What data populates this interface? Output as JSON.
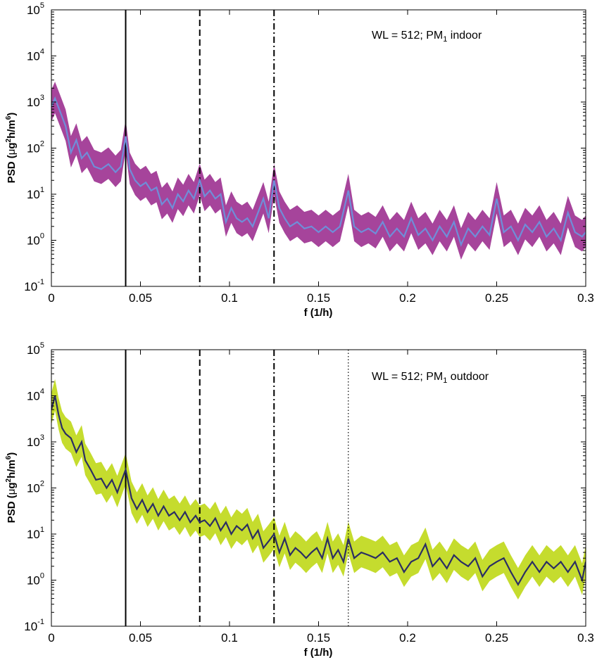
{
  "chart_data": [
    {
      "type": "area",
      "annotation": {
        "prefix": "WL = 512; PM",
        "sub": "1",
        "suffix": " indoor"
      },
      "xlabel": "f (1/h)",
      "ylabel_parts": {
        "a": "PSD (",
        "mu": "μ",
        "g": "g",
        "sup1": "2",
        "b": "h/m",
        "sup2": "6",
        "c": ")"
      },
      "xlim": [
        0,
        0.3
      ],
      "ylim": [
        0.1,
        100000
      ],
      "yscale": "log",
      "x_ticks": [
        "0",
        "0.05",
        "0.1",
        "0.15",
        "0.2",
        "0.25",
        "0.3"
      ],
      "y_ticks": [
        {
          "base": "10",
          "exp": "-1"
        },
        {
          "base": "10",
          "exp": "0"
        },
        {
          "base": "10",
          "exp": "1"
        },
        {
          "base": "10",
          "exp": "2"
        },
        {
          "base": "10",
          "exp": "3"
        },
        {
          "base": "10",
          "exp": "4"
        },
        {
          "base": "10",
          "exp": "5"
        }
      ],
      "band_color": "#a6449b",
      "line_color": "#6f8ed8",
      "vlines": [
        {
          "x": 0.0417,
          "style": "solid"
        },
        {
          "x": 0.0833,
          "style": "dashed"
        },
        {
          "x": 0.125,
          "style": "dashdot"
        }
      ],
      "series": [
        {
          "role": "median",
          "x": [
            0,
            0.002,
            0.005,
            0.008,
            0.011,
            0.014,
            0.017,
            0.02,
            0.024,
            0.028,
            0.032,
            0.036,
            0.039,
            0.0417,
            0.044,
            0.047,
            0.05,
            0.053,
            0.056,
            0.059,
            0.062,
            0.065,
            0.068,
            0.071,
            0.074,
            0.077,
            0.08,
            0.0833,
            0.086,
            0.089,
            0.092,
            0.095,
            0.098,
            0.101,
            0.104,
            0.107,
            0.11,
            0.113,
            0.116,
            0.119,
            0.122,
            0.125,
            0.128,
            0.131,
            0.134,
            0.138,
            0.142,
            0.146,
            0.15,
            0.154,
            0.158,
            0.162,
            0.1667,
            0.17,
            0.174,
            0.178,
            0.182,
            0.186,
            0.19,
            0.194,
            0.198,
            0.202,
            0.206,
            0.21,
            0.214,
            0.218,
            0.222,
            0.226,
            0.23,
            0.234,
            0.238,
            0.242,
            0.246,
            0.25,
            0.254,
            0.258,
            0.262,
            0.266,
            0.27,
            0.274,
            0.278,
            0.282,
            0.286,
            0.29,
            0.294,
            0.298,
            0.3
          ],
          "y": [
            800,
            1200,
            600,
            300,
            80,
            150,
            60,
            80,
            40,
            35,
            45,
            30,
            40,
            180,
            35,
            20,
            15,
            18,
            12,
            14,
            6,
            8,
            5,
            10,
            7,
            12,
            8,
            20,
            9,
            12,
            8,
            10,
            2.5,
            5,
            3,
            2.5,
            3,
            2,
            4,
            8,
            3,
            20,
            5,
            3,
            2,
            2.5,
            1.8,
            2,
            1.5,
            2,
            1.5,
            2,
            12,
            2,
            1.5,
            1.8,
            1.4,
            2.5,
            1.2,
            1.8,
            1.2,
            3,
            1.3,
            1.8,
            1.0,
            2,
            1.2,
            2.5,
            0.8,
            1.8,
            1.2,
            2,
            1.3,
            8,
            1.5,
            2,
            1.0,
            2.2,
            1.5,
            2.5,
            1.2,
            1.8,
            1.0,
            4,
            1.5,
            1.2,
            1.5
          ]
        }
      ]
    },
    {
      "type": "area",
      "annotation": {
        "prefix": "WL = 512; PM",
        "sub": "1",
        "suffix": " outdoor"
      },
      "xlabel": "f (1/h)",
      "ylabel_parts": {
        "a": "PSD (",
        "mu": "μ",
        "g": "g",
        "sup1": "2",
        "b": "h/m",
        "sup2": "6",
        "c": ")"
      },
      "xlim": [
        0,
        0.3
      ],
      "ylim": [
        0.1,
        100000
      ],
      "yscale": "log",
      "x_ticks": [
        "0",
        "0.05",
        "0.1",
        "0.15",
        "0.2",
        "0.25",
        "0.3"
      ],
      "y_ticks": [
        {
          "base": "10",
          "exp": "-1"
        },
        {
          "base": "10",
          "exp": "0"
        },
        {
          "base": "10",
          "exp": "1"
        },
        {
          "base": "10",
          "exp": "2"
        },
        {
          "base": "10",
          "exp": "3"
        },
        {
          "base": "10",
          "exp": "4"
        },
        {
          "base": "10",
          "exp": "5"
        }
      ],
      "band_color": "#c5dc2e",
      "line_color": "#2b2e63",
      "vlines": [
        {
          "x": 0.0417,
          "style": "solid"
        },
        {
          "x": 0.0833,
          "style": "dashed"
        },
        {
          "x": 0.125,
          "style": "dashdot"
        },
        {
          "x": 0.1667,
          "style": "dotted"
        }
      ],
      "series": [
        {
          "role": "median",
          "x": [
            0,
            0.002,
            0.004,
            0.006,
            0.008,
            0.011,
            0.014,
            0.017,
            0.019,
            0.022,
            0.025,
            0.028,
            0.031,
            0.034,
            0.037,
            0.0417,
            0.045,
            0.048,
            0.051,
            0.054,
            0.057,
            0.06,
            0.063,
            0.066,
            0.069,
            0.072,
            0.075,
            0.078,
            0.081,
            0.0833,
            0.086,
            0.089,
            0.092,
            0.095,
            0.098,
            0.101,
            0.104,
            0.107,
            0.11,
            0.113,
            0.116,
            0.119,
            0.122,
            0.125,
            0.128,
            0.131,
            0.134,
            0.137,
            0.14,
            0.143,
            0.146,
            0.149,
            0.152,
            0.155,
            0.158,
            0.161,
            0.164,
            0.1667,
            0.17,
            0.174,
            0.178,
            0.182,
            0.186,
            0.19,
            0.194,
            0.198,
            0.202,
            0.206,
            0.21,
            0.214,
            0.218,
            0.222,
            0.226,
            0.23,
            0.234,
            0.238,
            0.242,
            0.246,
            0.25,
            0.254,
            0.258,
            0.262,
            0.266,
            0.27,
            0.274,
            0.278,
            0.282,
            0.286,
            0.29,
            0.294,
            0.298,
            0.3
          ],
          "y": [
            5000,
            10000,
            4000,
            2000,
            1500,
            1200,
            600,
            1000,
            400,
            250,
            150,
            160,
            100,
            150,
            80,
            250,
            60,
            35,
            55,
            30,
            45,
            25,
            40,
            25,
            30,
            20,
            30,
            18,
            25,
            18,
            20,
            15,
            22,
            12,
            18,
            10,
            15,
            12,
            16,
            8,
            12,
            5,
            7,
            10,
            4,
            8,
            3.5,
            5,
            4,
            3,
            4,
            5,
            3,
            8,
            3,
            4.5,
            2.5,
            8,
            3,
            4,
            3.5,
            3,
            4,
            2.5,
            3,
            1.5,
            2.5,
            3,
            6,
            2,
            3,
            1.8,
            3.5,
            2.5,
            2,
            3,
            1.2,
            2,
            2.5,
            3,
            1.5,
            0.8,
            1.5,
            2.5,
            1.5,
            2.5,
            1.8,
            2.5,
            1.5,
            2.5,
            1.0,
            2.5
          ]
        }
      ]
    }
  ]
}
